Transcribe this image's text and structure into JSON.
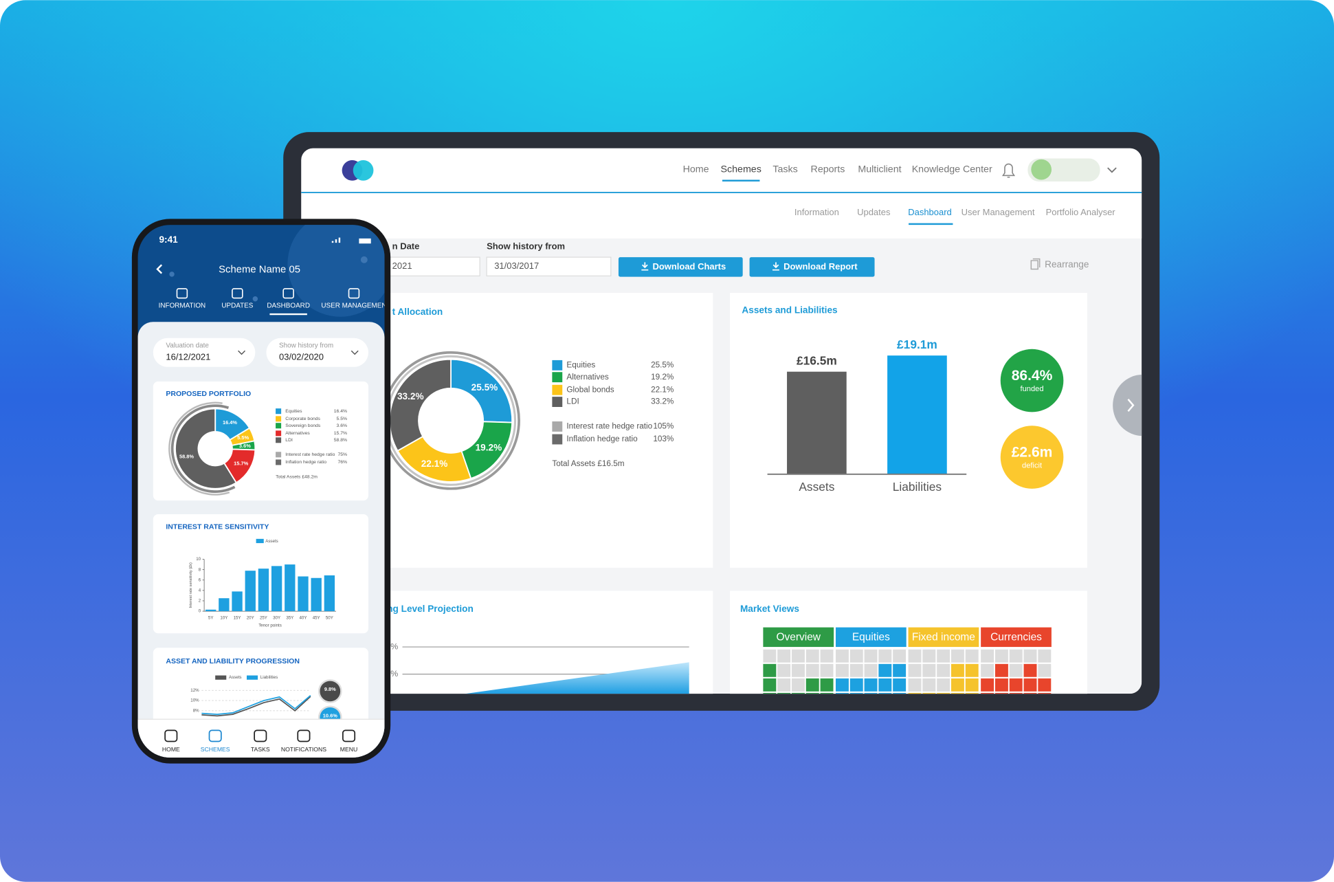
{
  "tablet": {
    "nav": [
      "Home",
      "Schemes",
      "Tasks",
      "Reports",
      "Multiclient",
      "Knowledge Center"
    ],
    "subnav": [
      "Information",
      "Updates",
      "Dashboard",
      "User Management",
      "Portfolio Analyser"
    ],
    "valuation_label": "n Date",
    "valuation_value": "2021",
    "history_label": "Show history from",
    "history_value": "31/03/2017",
    "buttons": [
      "Download Charts",
      "Download Report"
    ],
    "rearrange": "Rearrange",
    "asset_allocation": {
      "title": "t Allocation",
      "type": "pie",
      "categories": [
        "Equities",
        "Alternatives",
        "Global bonds",
        "LDI"
      ],
      "values": [
        25.5,
        19.2,
        22.1,
        33.2
      ],
      "value_labels": [
        "25.5%",
        "19.2%",
        "22.1%",
        "33.2%"
      ],
      "colors": [
        "#1e9bd7",
        "#1aa54a",
        "#fcc419",
        "#5f5f5f"
      ],
      "ratios": {
        "categories": [
          "Interest rate hedge ratio",
          "Inflation hedge ratio"
        ],
        "values": [
          105,
          103
        ],
        "value_labels": [
          "105%",
          "103%"
        ],
        "colors": [
          "#a9a9a9",
          "#6a6a6a"
        ]
      },
      "total": "Total Assets £16.5m"
    },
    "assets_liabilities": {
      "title": "Assets and Liabilities",
      "type": "bar",
      "categories": [
        "Assets",
        "Liabilities"
      ],
      "values": [
        16.5,
        19.1
      ],
      "value_labels": [
        "£16.5m",
        "£19.1m"
      ],
      "colors": [
        "#5f5f5f",
        "#12a3e8"
      ],
      "funded": {
        "label": "86.4%",
        "caption": "funded",
        "color": "#22a447"
      },
      "deficit": {
        "label": "£2.6m",
        "caption": "deficit",
        "color": "#fcc82e"
      }
    },
    "funding": {
      "title": "ng Level Projection",
      "ytick_labels": [
        "%",
        "%"
      ]
    },
    "market_views": {
      "title": "Market Views",
      "headers": [
        "Overview",
        "Equities",
        "Fixed income",
        "Currencies"
      ],
      "colors": [
        "#2e9b46",
        "#1da1e0",
        "#f5c32c",
        "#e8452c"
      ]
    }
  },
  "phone": {
    "time": "9:41",
    "title": "Scheme Name 05",
    "tabs": [
      "INFORMATION",
      "UPDATES",
      "DASHBOARD",
      "USER MANAGEMEN"
    ],
    "valuation_label": "Valuation date",
    "valuation_value": "16/12/2021",
    "history_label": "Show history from",
    "history_value": "03/02/2020",
    "proposed_portfolio": {
      "title": "PROPOSED PORTFOLIO",
      "type": "pie",
      "categories": [
        "Equities",
        "Corporate bonds",
        "Sovereign bonds",
        "Alternatives",
        "LDI"
      ],
      "values": [
        16.4,
        5.5,
        3.6,
        15.7,
        58.8
      ],
      "value_labels": [
        "16.4%",
        "5.5%",
        "3.6%",
        "15.7%",
        "58.8%"
      ],
      "colors": [
        "#1e9bd7",
        "#fcc419",
        "#1aa54a",
        "#e32b2b",
        "#5f5f5f"
      ],
      "ratios": {
        "categories": [
          "Interest rate hedge ratio",
          "Inflation hedge ratio"
        ],
        "values": [
          75,
          76
        ],
        "value_labels": [
          "75%",
          "76%"
        ],
        "colors": [
          "#a9a9a9",
          "#6a6a6a"
        ]
      },
      "total": "Total Assets £48.2m"
    },
    "interest_rate_sensitivity": {
      "title": "INTEREST RATE SENSITIVITY",
      "type": "bar",
      "categories": [
        "5Y",
        "10Y",
        "15Y",
        "20Y",
        "25Y",
        "30Y",
        "35Y",
        "40Y",
        "45Y",
        "50Y"
      ],
      "series": [
        {
          "name": "Assets",
          "color": "#1ea0e0",
          "values": [
            0.3,
            2.5,
            3.8,
            7.8,
            8.2,
            8.7,
            9.0,
            6.7,
            6.4,
            6.9
          ]
        }
      ],
      "ylim": [
        0,
        10
      ],
      "yticks": [
        0,
        2,
        4,
        6,
        8,
        10
      ],
      "x_label": "Tenor points",
      "y_label": "Interest rate sensitivity (£k)"
    },
    "progression": {
      "title": "ASSET AND LIABILITY PROGRESSION",
      "type": "line",
      "series": [
        {
          "name": "Assets",
          "color": "#555555",
          "values": [
            7.2,
            7.0,
            7.3,
            8.4,
            9.6,
            10.3,
            8.0,
            10.8
          ]
        },
        {
          "name": "Liabilities",
          "color": "#1ea0e0",
          "values": [
            7.5,
            7.3,
            7.6,
            8.8,
            10.0,
            10.7,
            8.4,
            11.0
          ]
        }
      ],
      "ylim": [
        6,
        12
      ],
      "yticks": [
        {
          "value": 12,
          "label": "12%"
        },
        {
          "value": 10,
          "label": "10%"
        },
        {
          "value": 8,
          "label": "8%"
        }
      ],
      "indicators": [
        {
          "label": "9.8%",
          "color": "#4a4a4a"
        },
        {
          "label": "10.6%",
          "color": "#1ea0e0"
        }
      ]
    },
    "bottom_nav": [
      "HOME",
      "SCHEMES",
      "TASKS",
      "NOTIFICATIONS",
      "MENU"
    ]
  }
}
